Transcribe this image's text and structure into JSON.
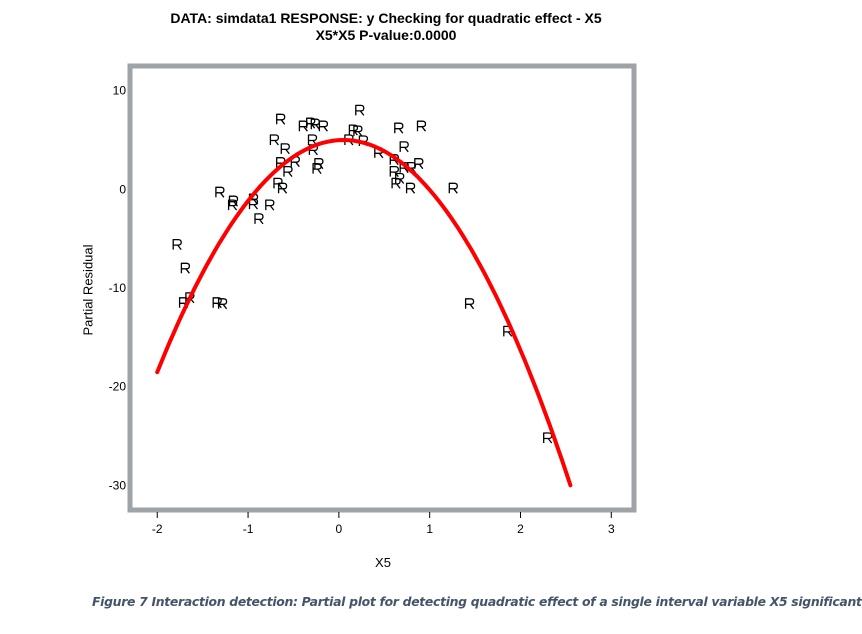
{
  "chart_data": {
    "type": "scatter",
    "title": "DATA: simdata1 RESPONSE: y Checking for quadratic effect - X5",
    "subtitle": "X5*X5  P-value:0.0000",
    "xlabel": "X5",
    "ylabel": "Partial Residual",
    "xlim": [
      -2.3,
      3.25
    ],
    "ylim": [
      -32.5,
      12.5
    ],
    "xticks": [
      "-2",
      "-1",
      "0",
      "1",
      "2",
      "3"
    ],
    "yticks": [
      "10",
      "0",
      "-10",
      "-20",
      "-30"
    ],
    "marker": "R",
    "grid": false,
    "points": [
      [
        0.23,
        8.0
      ],
      [
        -0.64,
        7.1
      ],
      [
        -0.39,
        6.4
      ],
      [
        -0.31,
        6.7
      ],
      [
        -0.26,
        6.6
      ],
      [
        -0.17,
        6.4
      ],
      [
        0.16,
        6.0
      ],
      [
        0.21,
        5.9
      ],
      [
        0.66,
        6.2
      ],
      [
        0.91,
        6.4
      ],
      [
        -0.71,
        5.0
      ],
      [
        -0.59,
        4.1
      ],
      [
        -0.29,
        5.0
      ],
      [
        -0.28,
        4.0
      ],
      [
        0.11,
        5.0
      ],
      [
        0.27,
        4.9
      ],
      [
        0.72,
        4.3
      ],
      [
        0.44,
        3.7
      ],
      [
        -0.64,
        2.7
      ],
      [
        -0.48,
        2.8
      ],
      [
        -0.56,
        1.8
      ],
      [
        -0.22,
        2.6
      ],
      [
        -0.24,
        2.1
      ],
      [
        0.61,
        3.0
      ],
      [
        0.72,
        2.2
      ],
      [
        0.8,
        2.2
      ],
      [
        0.88,
        2.6
      ],
      [
        0.61,
        1.8
      ],
      [
        0.67,
        1.1
      ],
      [
        0.63,
        0.6
      ],
      [
        0.79,
        0.1
      ],
      [
        1.26,
        0.1
      ],
      [
        -0.67,
        0.6
      ],
      [
        -0.62,
        0.1
      ],
      [
        -1.31,
        -0.3
      ],
      [
        -1.16,
        -1.2
      ],
      [
        -1.17,
        -1.6
      ],
      [
        -0.94,
        -1.0
      ],
      [
        -0.94,
        -1.5
      ],
      [
        -0.76,
        -1.6
      ],
      [
        -0.88,
        -3.0
      ],
      [
        -1.78,
        -5.6
      ],
      [
        -1.69,
        -8.0
      ],
      [
        -1.64,
        -11.0
      ],
      [
        -1.71,
        -11.5
      ],
      [
        -1.34,
        -11.5
      ],
      [
        -1.28,
        -11.6
      ],
      [
        1.44,
        -11.6
      ],
      [
        1.86,
        -14.4
      ],
      [
        2.3,
        -25.2
      ]
    ],
    "fit_curve": {
      "type": "quadratic",
      "vertex_x": 0.05,
      "vertex_y": 5.0,
      "a": -5.6,
      "x_range": [
        -2.0,
        2.55
      ],
      "color": "#ff0000"
    },
    "frame_color": "#9ea3a8"
  },
  "caption": "Figure 7 Interaction detection: Partial plot for detecting quadratic effect of a single interval variable X5 significant"
}
